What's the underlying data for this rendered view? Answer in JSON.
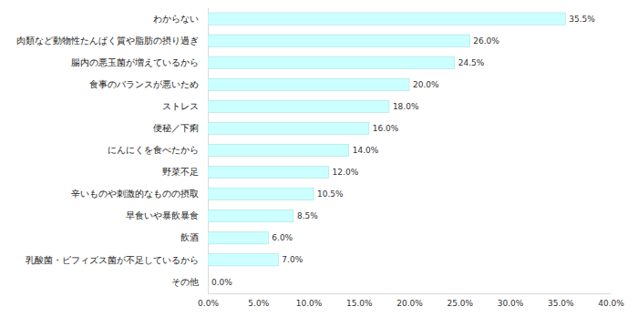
{
  "chart_data": {
    "type": "bar",
    "orientation": "horizontal",
    "categories": [
      "わからない",
      "肉類など動物性たんぱく質や脂肪の摂り過ぎ",
      "腸内の悪玉菌が増えているから",
      "食事のバランスが悪いため",
      "ストレス",
      "便秘／下痢",
      "にんにくを食べたから",
      "野菜不足",
      "辛いものや刺激的なものの摂取",
      "早食いや暴飲暴食",
      "飲酒",
      "乳酸菌・ビフィズス菌が不足しているから",
      "その他"
    ],
    "values": [
      35.5,
      26.0,
      24.5,
      20.0,
      18.0,
      16.0,
      14.0,
      12.0,
      10.5,
      8.5,
      6.0,
      7.0,
      0.0
    ],
    "value_labels": [
      "35.5%",
      "26.0%",
      "24.5%",
      "20.0%",
      "18.0%",
      "16.0%",
      "14.0%",
      "12.0%",
      "10.5%",
      "8.5%",
      "6.0%",
      "7.0%",
      "0.0%"
    ],
    "data_labels": true,
    "color": "#ccffff",
    "xlim": [
      0,
      40
    ],
    "xticks": [
      {
        "value": 0,
        "label": "0.0%"
      },
      {
        "value": 5,
        "label": "5.0%"
      },
      {
        "value": 10,
        "label": "10.0%"
      },
      {
        "value": 15,
        "label": "15.0%"
      },
      {
        "value": 20,
        "label": "20.0%"
      },
      {
        "value": 25,
        "label": "25.0%"
      },
      {
        "value": 30,
        "label": "30.0%"
      },
      {
        "value": 35,
        "label": "35.0%"
      },
      {
        "value": 40,
        "label": "40.0%"
      }
    ],
    "grid": false
  }
}
